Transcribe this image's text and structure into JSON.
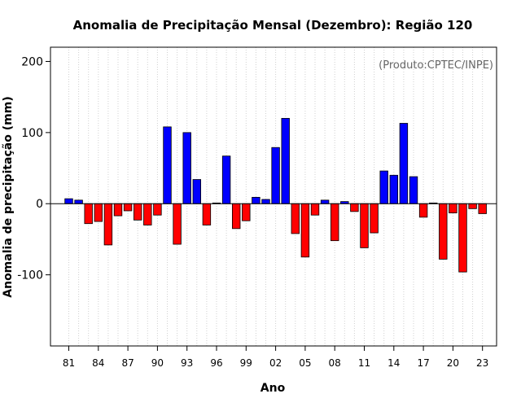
{
  "chart_data": {
    "type": "bar",
    "title": "Anomalia de Precipitação Mensal (Dezembro): Região 120",
    "xlabel": "Ano",
    "ylabel": "Anomalia de precipitação (mm)",
    "annotation": "(Produto:CPTEC/INPE)",
    "ylim": [
      -200,
      220
    ],
    "yticks": [
      -100,
      0,
      100,
      200
    ],
    "ytick_labels": [
      "-100",
      "0",
      "100",
      "200"
    ],
    "xtick_labels": [
      "81",
      "84",
      "87",
      "90",
      "93",
      "96",
      "99",
      "02",
      "05",
      "08",
      "11",
      "14",
      "17",
      "20",
      "23"
    ],
    "xtick_years": [
      1981,
      1984,
      1987,
      1990,
      1993,
      1996,
      1999,
      2002,
      2005,
      2008,
      2011,
      2014,
      2017,
      2020,
      2023
    ],
    "grid": "vertical-dotted",
    "positive_color": "#0000ff",
    "negative_color": "#ff0000",
    "categories": [
      1981,
      1982,
      1983,
      1984,
      1985,
      1986,
      1987,
      1988,
      1989,
      1990,
      1991,
      1992,
      1993,
      1994,
      1995,
      1996,
      1997,
      1998,
      1999,
      2000,
      2001,
      2002,
      2003,
      2004,
      2005,
      2006,
      2007,
      2008,
      2009,
      2010,
      2011,
      2012,
      2013,
      2014,
      2015,
      2016,
      2017,
      2018,
      2019,
      2020,
      2021,
      2022,
      2023
    ],
    "values": [
      7,
      5,
      -28,
      -25,
      -58,
      -17,
      -10,
      -23,
      -30,
      -16,
      108,
      -57,
      100,
      34,
      -30,
      1,
      67,
      -35,
      -24,
      9,
      6,
      79,
      120,
      -42,
      -75,
      -16,
      5,
      -52,
      3,
      -11,
      -62,
      -41,
      46,
      40,
      113,
      38,
      -19,
      1,
      -78,
      -13,
      -96,
      -7,
      -14
    ]
  }
}
